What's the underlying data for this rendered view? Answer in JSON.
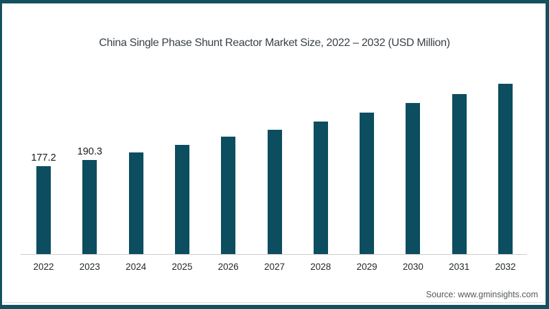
{
  "page": {
    "background": "#ffffff",
    "frame_color": "#15505f"
  },
  "chart_data": {
    "type": "bar",
    "title": "China Single Phase Shunt Reactor Market Size, 2022 – 2032 (USD Million)",
    "categories": [
      "2022",
      "2023",
      "2024",
      "2025",
      "2026",
      "2027",
      "2028",
      "2029",
      "2030",
      "2031",
      "2032"
    ],
    "values": [
      177.2,
      190.3,
      204.4,
      219.6,
      236.2,
      250.0,
      267.9,
      285.9,
      305.2,
      323.2,
      343.9
    ],
    "value_labels": [
      "177.2",
      "190.3",
      "",
      "",
      "",
      "",
      "",
      "",
      "",
      "",
      ""
    ],
    "xlabel": "",
    "ylabel": "",
    "ylim": [
      0,
      360
    ],
    "grid": false,
    "legend": false,
    "bar_color": "#0c4d5f",
    "axis_line_color": "#cccccc"
  },
  "footer": {
    "source": "Source: www.gminsights.com"
  }
}
